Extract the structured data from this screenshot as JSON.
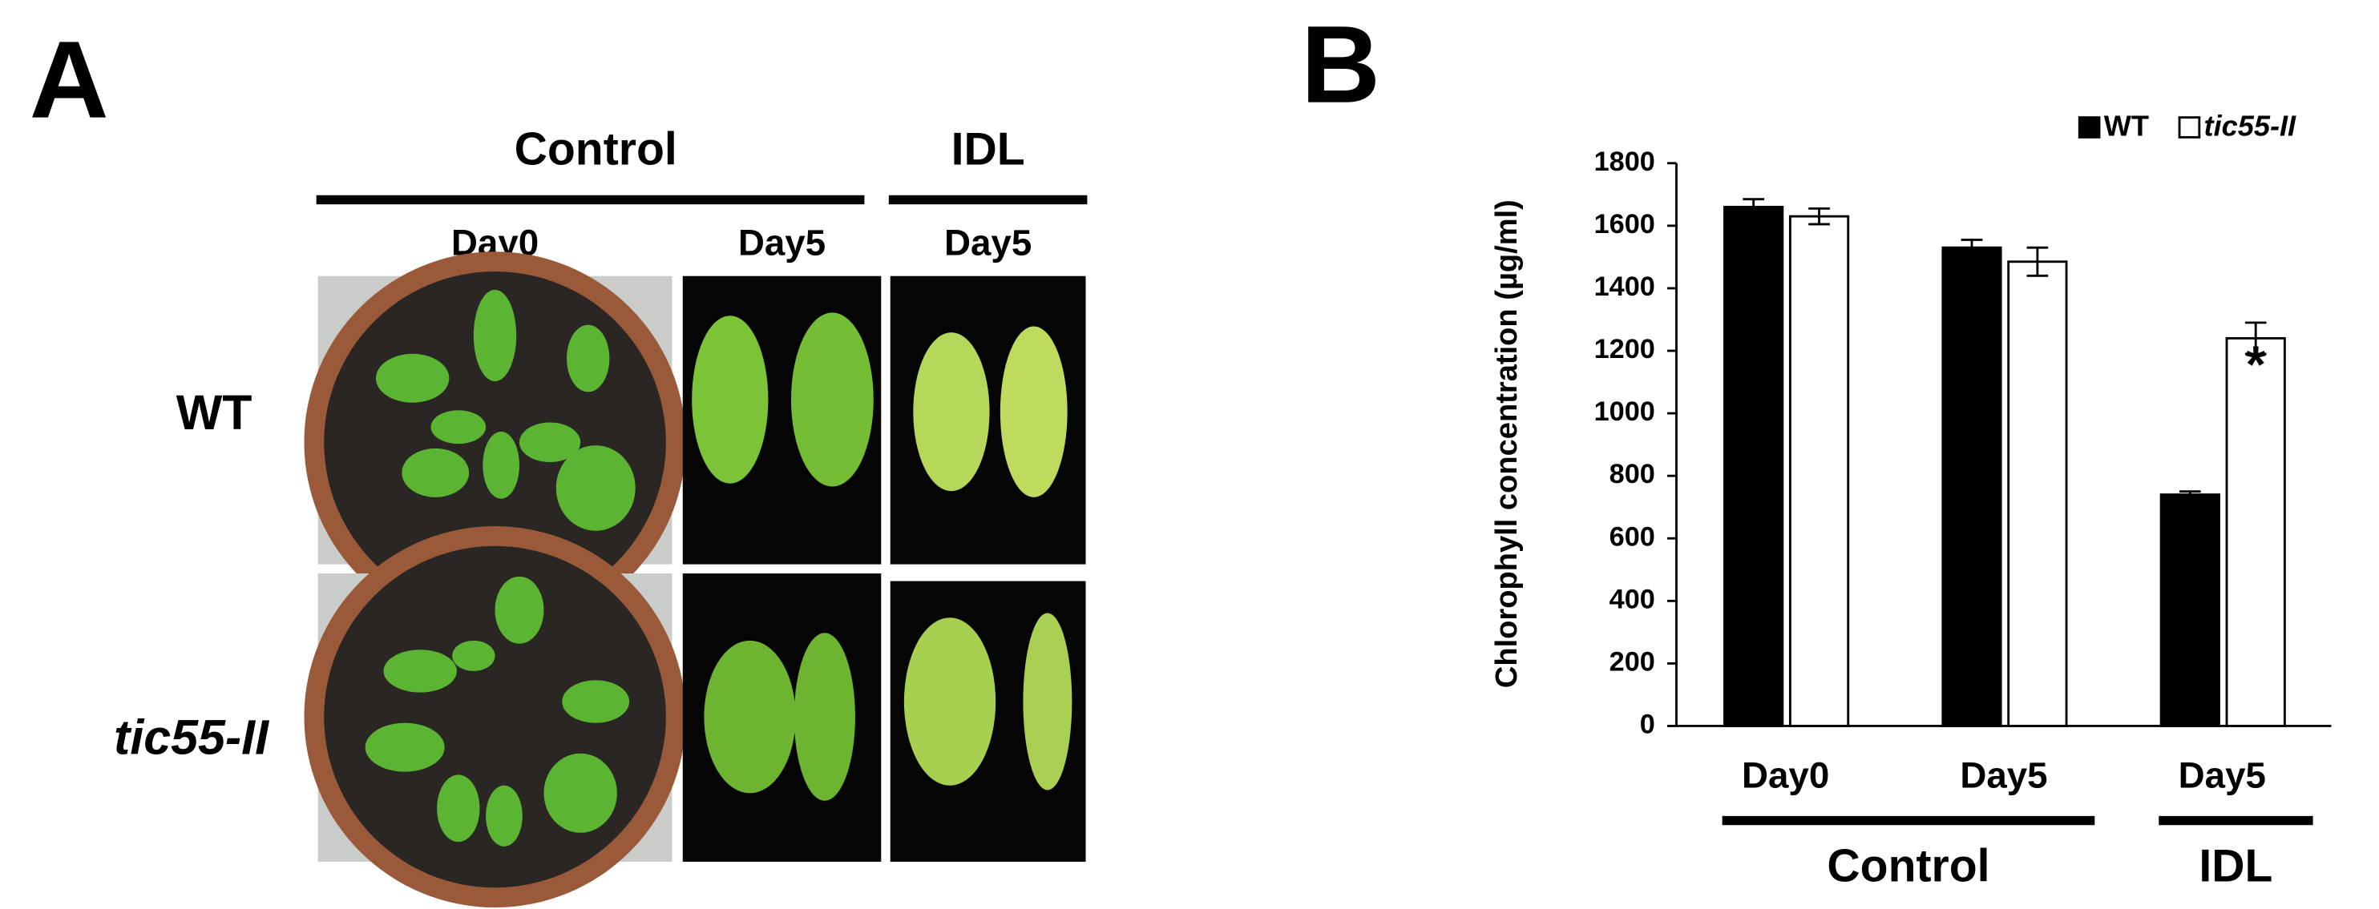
{
  "panel_a": {
    "label": "A",
    "group_labels": [
      "Control",
      "IDL"
    ],
    "column_labels": [
      "Day0",
      "Day5",
      "Day5"
    ],
    "row_labels": [
      "WT",
      "tic55-II"
    ]
  },
  "chart_data": {
    "type": "bar",
    "panel_label": "B",
    "y_label": "Chlorophyll concentration (µg/ml)",
    "categories": [
      "Day0",
      "Day5",
      "Day5"
    ],
    "category_groups": [
      "Control",
      "Control",
      "IDL"
    ],
    "series": [
      {
        "name": "WT",
        "color": "#000000",
        "values": [
          1660,
          1530,
          740
        ],
        "errors": [
          25,
          25,
          10
        ]
      },
      {
        "name": "tic55-II",
        "color": "#ffffff",
        "values": [
          1630,
          1485,
          1240
        ],
        "errors": [
          25,
          45,
          50
        ]
      }
    ],
    "annotation": "*",
    "ylim": [
      0,
      1800
    ],
    "yticks": [
      0,
      200,
      400,
      600,
      800,
      1000,
      1200,
      1400,
      1600,
      1800
    ],
    "legend": "top-right",
    "grid": false
  }
}
